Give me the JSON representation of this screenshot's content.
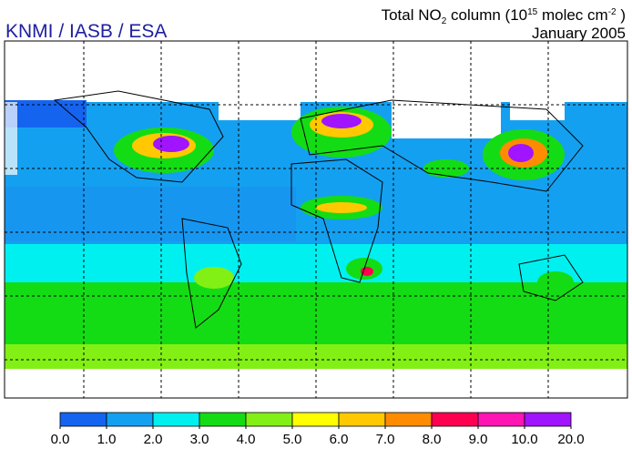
{
  "header": {
    "credit": "KNMI / IASB / ESA",
    "title_parts": [
      "Total NO",
      "2",
      " column (10",
      "15",
      " molec cm",
      "-2",
      " )"
    ],
    "date": "January 2005"
  },
  "colorbar": {
    "ticks": [
      {
        "value": 0,
        "label": "0.0"
      },
      {
        "value": 1,
        "label": "1.0"
      },
      {
        "value": 2,
        "label": "2.0"
      },
      {
        "value": 3,
        "label": "3.0"
      },
      {
        "value": 4,
        "label": "4.0"
      },
      {
        "value": 5,
        "label": "5.0"
      },
      {
        "value": 6,
        "label": "6.0"
      },
      {
        "value": 7,
        "label": "7.0"
      },
      {
        "value": 8,
        "label": "8.0"
      },
      {
        "value": 9,
        "label": "9.0"
      },
      {
        "value": 10,
        "label": "10.0"
      },
      {
        "value": 20,
        "label": "20.0"
      }
    ],
    "colors": [
      "#1464f0",
      "#14a0f0",
      "#00f0f0",
      "#14dc14",
      "#82f014",
      "#ffff00",
      "#ffc800",
      "#ff8c00",
      "#ff0050",
      "#ff14b4",
      "#a014ff"
    ]
  }
}
